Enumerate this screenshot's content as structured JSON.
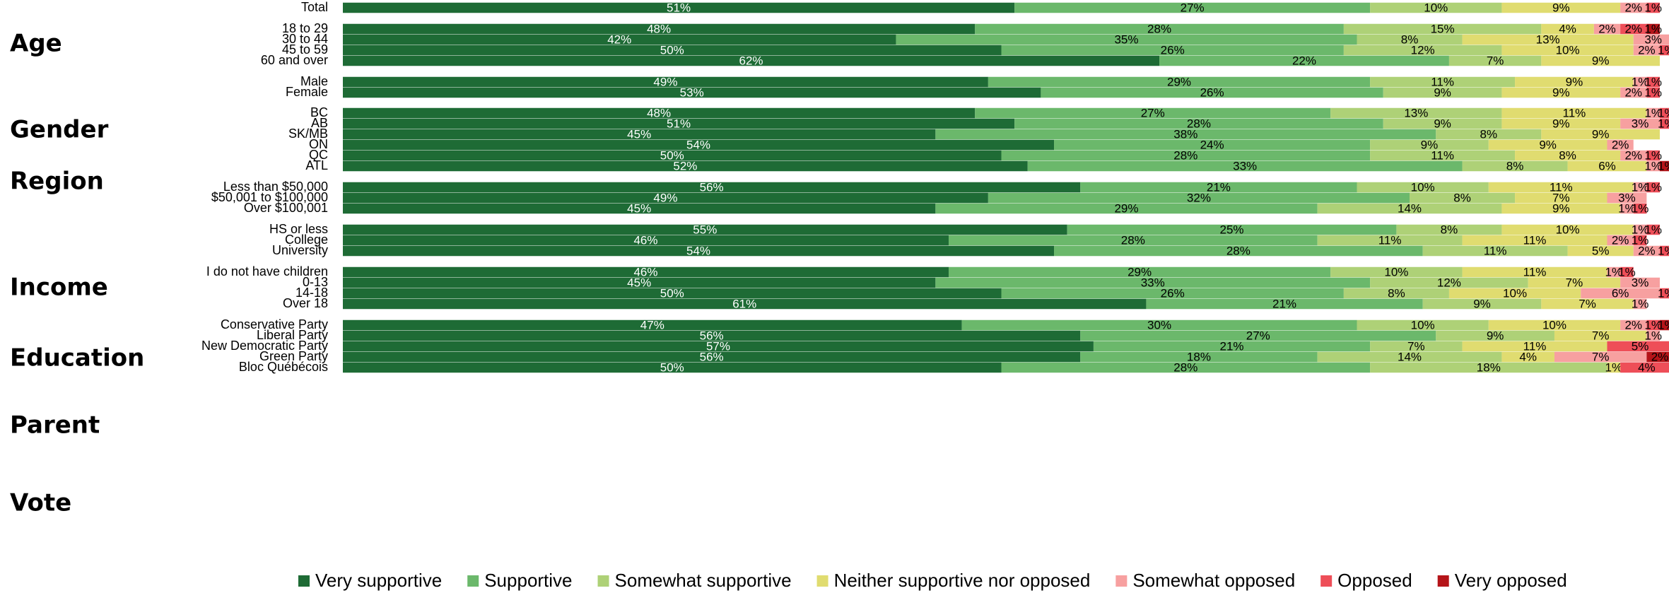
{
  "chart_data": {
    "type": "bar",
    "orientation": "horizontal",
    "stacked": true,
    "xlim": [
      0,
      100
    ],
    "grid": false,
    "legend_position": "bottom",
    "series": [
      {
        "name": "Very supportive",
        "color": "#1e6b35",
        "label_color": "#ffffff"
      },
      {
        "name": "Supportive",
        "color": "#6bb86b",
        "label_color": "#000000"
      },
      {
        "name": "Somewhat supportive",
        "color": "#aed177",
        "label_color": "#000000"
      },
      {
        "name": "Neither supportive nor opposed",
        "color": "#e0dc70",
        "label_color": "#000000"
      },
      {
        "name": "Somewhat opposed",
        "color": "#f7a0a0",
        "label_color": "#000000"
      },
      {
        "name": "Opposed",
        "color": "#ee4e58",
        "label_color": "#000000"
      },
      {
        "name": "Very opposed",
        "color": "#b51419",
        "label_color": "#000000"
      }
    ],
    "groups": [
      {
        "label": "",
        "rows": [
          {
            "label": "Total",
            "values": [
              51,
              27,
              10,
              9,
              2,
              1,
              0
            ]
          }
        ]
      },
      {
        "label": "Age",
        "rows": [
          {
            "label": "18 to 29",
            "values": [
              48,
              28,
              15,
              4,
              2,
              2,
              1
            ]
          },
          {
            "label": "30 to 44",
            "values": [
              42,
              35,
              8,
              13,
              3,
              0,
              0
            ]
          },
          {
            "label": "45 to 59",
            "values": [
              50,
              26,
              12,
              10,
              2,
              1,
              0
            ]
          },
          {
            "label": "60 and over",
            "values": [
              62,
              22,
              7,
              9,
              0,
              0,
              0
            ]
          }
        ]
      },
      {
        "label": "Gender",
        "rows": [
          {
            "label": "Male",
            "values": [
              49,
              29,
              11,
              9,
              1,
              1,
              0
            ]
          },
          {
            "label": "Female",
            "values": [
              53,
              26,
              9,
              9,
              2,
              1,
              0
            ]
          }
        ]
      },
      {
        "label": "Region",
        "rows": [
          {
            "label": "BC",
            "values": [
              48,
              27,
              13,
              11,
              1,
              1,
              0
            ]
          },
          {
            "label": "AB",
            "values": [
              51,
              28,
              9,
              9,
              3,
              1,
              0
            ]
          },
          {
            "label": "SK/MB",
            "values": [
              45,
              38,
              8,
              9,
              0,
              0,
              0
            ]
          },
          {
            "label": "ON",
            "values": [
              54,
              24,
              9,
              9,
              2,
              0,
              0
            ]
          },
          {
            "label": "QC",
            "values": [
              50,
              28,
              11,
              8,
              2,
              1,
              0
            ]
          },
          {
            "label": "ATL",
            "values": [
              52,
              33,
              8,
              6,
              1,
              0,
              1
            ]
          }
        ]
      },
      {
        "label": "Income",
        "rows": [
          {
            "label": "Less than $50,000",
            "values": [
              56,
              21,
              10,
              11,
              1,
              1,
              0
            ]
          },
          {
            "label": "$50,001 to $100,000",
            "values": [
              49,
              32,
              8,
              7,
              3,
              0,
              0
            ]
          },
          {
            "label": "Over $100,001",
            "values": [
              45,
              29,
              14,
              9,
              1,
              1,
              0
            ]
          }
        ]
      },
      {
        "label": "Education",
        "rows": [
          {
            "label": "HS or less",
            "values": [
              55,
              25,
              8,
              10,
              1,
              1,
              0
            ]
          },
          {
            "label": "College",
            "values": [
              46,
              28,
              11,
              11,
              2,
              1,
              0
            ]
          },
          {
            "label": "University",
            "values": [
              54,
              28,
              11,
              5,
              2,
              1,
              0
            ]
          }
        ]
      },
      {
        "label": "Parent",
        "rows": [
          {
            "label": "I do not have children",
            "values": [
              46,
              29,
              10,
              11,
              1,
              1,
              0
            ]
          },
          {
            "label": "0-13",
            "values": [
              45,
              33,
              12,
              7,
              3,
              0,
              0
            ]
          },
          {
            "label": "14-18",
            "values": [
              50,
              26,
              8,
              10,
              6,
              1,
              0
            ]
          },
          {
            "label": "Over 18",
            "values": [
              61,
              21,
              9,
              7,
              1,
              0,
              0
            ]
          }
        ]
      },
      {
        "label": "Vote",
        "rows": [
          {
            "label": "Conservative Party",
            "values": [
              47,
              30,
              10,
              10,
              2,
              1,
              1
            ]
          },
          {
            "label": "Liberal Party",
            "values": [
              56,
              27,
              9,
              7,
              1,
              0,
              0
            ]
          },
          {
            "label": "New Democratic Party",
            "values": [
              57,
              21,
              7,
              11,
              0,
              5,
              0
            ]
          },
          {
            "label": "Green Party",
            "values": [
              56,
              18,
              14,
              4,
              7,
              0,
              2
            ]
          },
          {
            "label": "Bloc Québécois",
            "values": [
              50,
              28,
              18,
              1,
              0,
              4,
              0
            ]
          }
        ]
      }
    ]
  }
}
